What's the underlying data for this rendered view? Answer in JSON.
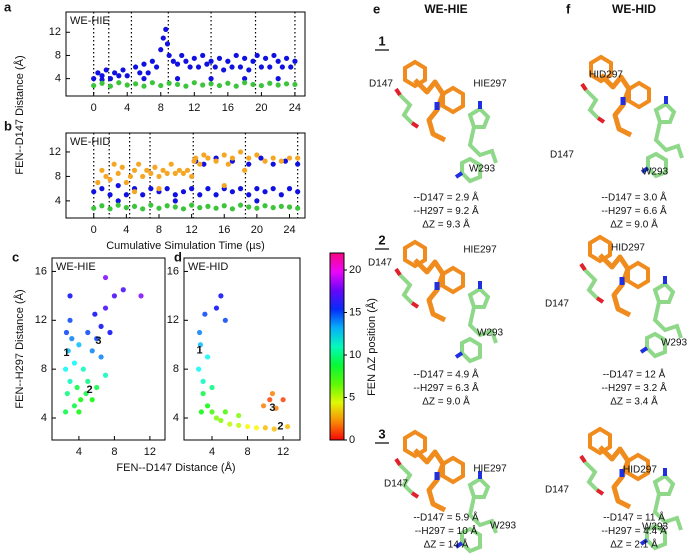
{
  "chart_data": [
    {
      "type": "scatter",
      "panel_label": "a",
      "annotation": "WE-HIE",
      "ylabel": "FEN--D147 Distance (Å)",
      "xlim": [
        -3.3,
        25.2
      ],
      "xticks": [
        0,
        4,
        8,
        12,
        16,
        20,
        24
      ],
      "ylim": [
        1,
        15.5
      ],
      "yticks": [
        4,
        8,
        12
      ],
      "segment_boundaries": [
        0,
        1.8,
        4.5,
        8.9,
        14,
        19.3,
        24
      ],
      "series": [
        {
          "color": "#1010e0",
          "x": [
            0,
            0.5,
            1,
            1.5,
            2,
            2.5,
            3,
            3.5,
            4,
            5,
            5.5,
            6,
            6.5,
            7,
            7.5,
            8,
            8.3,
            8.6,
            8.8,
            9,
            9.5,
            10,
            10.5,
            11,
            11.5,
            12,
            12.5,
            13,
            13.5,
            14,
            14.5,
            15,
            15.5,
            16,
            16.5,
            17,
            17.5,
            18,
            18.5,
            19,
            19.5,
            20,
            20.5,
            21,
            21.5,
            22,
            22.5,
            23,
            23.5,
            24,
            1,
            6,
            10,
            14,
            18,
            22
          ],
          "values": [
            4,
            5,
            4.5,
            5.5,
            4,
            5,
            4.5,
            5.5,
            4.5,
            6,
            5,
            6.5,
            5,
            7,
            6,
            9,
            11,
            12.5,
            10,
            8,
            7,
            6.5,
            8,
            7,
            6,
            7.5,
            6,
            8,
            6.5,
            7,
            6,
            7.5,
            5.5,
            7,
            6,
            8,
            6,
            7.5,
            5.5,
            7,
            8,
            6,
            7.5,
            6,
            8,
            7,
            6,
            7.5,
            6,
            7,
            3.8,
            4,
            4,
            4,
            4,
            4
          ]
        },
        {
          "color": "#3cc43c",
          "x": [
            0,
            1,
            2,
            3,
            4,
            5,
            6,
            7,
            8,
            9,
            10,
            11,
            12,
            13,
            14,
            15,
            16,
            17,
            18,
            19,
            20,
            21,
            22,
            23,
            24
          ],
          "values": [
            2.8,
            3.2,
            2.7,
            3.3,
            2.9,
            3.1,
            2.7,
            3.3,
            2.8,
            3.2,
            3,
            2.7,
            3.3,
            2.9,
            3.1,
            2.8,
            3.2,
            2.7,
            3.3,
            3,
            2.8,
            3.2,
            2.9,
            3.1,
            3
          ]
        }
      ]
    },
    {
      "type": "scatter",
      "panel_label": "b",
      "annotation": "WE-HID",
      "xlabel": "Cumulative Simulation Time (µs)",
      "xlim": [
        -3.4,
        25.9
      ],
      "xticks": [
        0,
        4,
        8,
        12,
        16,
        20,
        24
      ],
      "ylim": [
        1.2,
        15.1
      ],
      "yticks": [
        4,
        8,
        12
      ],
      "segment_boundaries": [
        0,
        1.9,
        4.4,
        6.9,
        12.2,
        18.6,
        25
      ],
      "series": [
        {
          "color": "#1010e0",
          "x": [
            0,
            1,
            2,
            3,
            4,
            5,
            6,
            7,
            8,
            9,
            10,
            11,
            12,
            12.5,
            13,
            14,
            15,
            16,
            17,
            18,
            19,
            20,
            21,
            22,
            23,
            24,
            25,
            13.5,
            15,
            17,
            19,
            20.5,
            22,
            23.5,
            25,
            3,
            10,
            20
          ],
          "values": [
            5.5,
            6,
            5,
            6.5,
            5,
            6,
            5,
            6,
            5.5,
            6,
            5,
            5.5,
            6,
            10.5,
            5,
            6,
            5,
            6,
            5.5,
            6,
            5,
            6,
            5.5,
            6,
            5,
            6,
            5.5,
            10,
            11,
            10.5,
            10,
            11,
            10,
            10.5,
            10,
            4,
            4,
            4
          ]
        },
        {
          "color": "#f5a623",
          "x": [
            0.5,
            1,
            1.5,
            2,
            2.5,
            3,
            3.5,
            4,
            4.5,
            5,
            5.5,
            6,
            6.5,
            7,
            7.5,
            8,
            8.5,
            9,
            9.5,
            10,
            10.5,
            11,
            11.5,
            12,
            12.3,
            12.5,
            13,
            13.5,
            14,
            15,
            16,
            16.5,
            17,
            18,
            18.5,
            19,
            20,
            21,
            22,
            23,
            24,
            25,
            5,
            8,
            16
          ],
          "values": [
            7,
            9,
            8,
            7.5,
            10,
            8.5,
            9.5,
            7,
            8,
            9,
            10,
            8,
            9,
            8.5,
            9.5,
            8,
            9,
            8.5,
            10,
            8.5,
            9,
            8.5,
            9,
            8,
            10.5,
            11,
            10,
            11.5,
            11,
            10.5,
            11.5,
            10,
            11,
            12,
            9,
            11,
            11.5,
            10.5,
            11,
            10.5,
            11,
            11,
            5.5,
            6,
            6.5
          ]
        },
        {
          "color": "#3cc43c",
          "x": [
            0,
            1,
            2,
            3,
            4,
            5,
            6,
            7,
            8,
            9,
            10,
            11,
            12,
            13,
            14,
            15,
            16,
            17,
            18,
            19,
            20,
            21,
            22,
            23,
            24,
            25
          ],
          "values": [
            2.8,
            3.2,
            2.7,
            3.3,
            2.9,
            3.1,
            2.7,
            3.3,
            2.8,
            3.2,
            3,
            2.7,
            3.3,
            2.9,
            3.1,
            2.8,
            3.2,
            2.7,
            3.3,
            3,
            2.8,
            3.2,
            2.9,
            3.1,
            3,
            2.8
          ]
        }
      ]
    },
    {
      "type": "colorscatter",
      "panel_label": "c",
      "annotation": "WE-HIE",
      "ylabel": "FEN--H297 Distance (Å)",
      "xlabel": "FEN--D147 Distance (Å)",
      "xlim": [
        0.97,
        13.7
      ],
      "xticks": [
        4,
        8,
        12
      ],
      "ylim": [
        2.2,
        17.1
      ],
      "yticks": [
        4,
        8,
        12,
        16
      ],
      "x": [
        2.5,
        2.8,
        3,
        3.2,
        2.6,
        3.5,
        3,
        2.7,
        3.8,
        4.2,
        4.8,
        5.5,
        6,
        5,
        4.5,
        5.5,
        6,
        6.5,
        5.8,
        7,
        7.5,
        5,
        6.5,
        8,
        4,
        3.5,
        7,
        4,
        9,
        3,
        11,
        7,
        2.5
      ],
      "values": [
        8,
        9.5,
        7,
        10.5,
        11,
        8.5,
        12,
        6,
        6.5,
        5.5,
        6,
        5.5,
        6.5,
        7,
        8,
        9.5,
        10.5,
        11.5,
        12.5,
        13,
        11,
        11,
        9,
        14,
        4.5,
        5,
        7.5,
        10,
        14.5,
        14,
        14,
        15.5,
        4.5
      ],
      "z": [
        12,
        13,
        11,
        14,
        15,
        12,
        15,
        10,
        9,
        8,
        9,
        8,
        9,
        10,
        11,
        14,
        15,
        16,
        16,
        17,
        16,
        15,
        14,
        17,
        8,
        9,
        11,
        13,
        17,
        16,
        18,
        18,
        9
      ],
      "annotations": [
        {
          "text": "1",
          "x": 2.6,
          "y": 9.3
        },
        {
          "text": "2",
          "x": 5.2,
          "y": 6.3
        },
        {
          "text": "3",
          "x": 6.2,
          "y": 10.3
        }
      ]
    },
    {
      "type": "colorscatter",
      "panel_label": "d",
      "annotation": "WE-HID",
      "xlim": [
        0.85,
        13.9
      ],
      "xticks": [
        4,
        8,
        12
      ],
      "ylim": [
        2.2,
        17.1
      ],
      "yticks": [
        4,
        8,
        12,
        16
      ],
      "x": [
        2.5,
        2.7,
        3,
        2.6,
        3.2,
        3,
        3.5,
        4,
        4.5,
        5,
        6,
        7,
        8,
        9,
        10,
        11,
        5.5,
        7,
        9.8,
        10.5,
        11.2,
        12,
        10.8,
        4.5,
        5,
        5.5,
        3.5,
        2.8,
        4,
        12.5
      ],
      "values": [
        8,
        10,
        7,
        11,
        12.5,
        6,
        5,
        4.5,
        4,
        3.8,
        3.5,
        3.4,
        3.3,
        3.2,
        3.2,
        3.1,
        4.5,
        4.2,
        5,
        5.5,
        4.8,
        5.5,
        6,
        13,
        14,
        12,
        9,
        4.5,
        6.5,
        3.3
      ],
      "z": [
        12,
        13,
        11,
        14,
        15,
        9,
        8,
        7,
        6,
        6,
        5,
        5,
        4,
        4,
        3,
        3,
        7,
        6,
        2,
        1,
        2,
        1,
        2,
        16,
        16,
        15,
        12,
        8,
        10,
        3
      ],
      "annotations": [
        {
          "text": "1",
          "x": 2.6,
          "y": 9.5
        },
        {
          "text": "3",
          "x": 10.8,
          "y": 4.8
        },
        {
          "text": "2",
          "x": 11.7,
          "y": 3.3
        }
      ],
      "colorbar": {
        "label": "FEN ΔZ position (Å)",
        "lim": [
          0,
          22
        ],
        "ticks": [
          0,
          5,
          10,
          15,
          20
        ]
      }
    }
  ],
  "structures": {
    "columns": [
      {
        "label": "e",
        "title": "WE-HIE"
      },
      {
        "label": "f",
        "title": "WE-HID"
      }
    ],
    "rows": [
      {
        "number": "1",
        "cells": [
          {
            "residues": [
              "D147",
              "HIE297",
              "W293"
            ],
            "lines": [
              "--D147 = 2.9 Å",
              "--H297 = 9.2 Å",
              "ΔZ = 9.3 Å"
            ]
          },
          {
            "residues": [
              "HID297",
              "D147",
              "W293"
            ],
            "lines": [
              "--D147 = 3.0 Å",
              "--H297 = 6.6 Å",
              "ΔZ = 9.0 Å"
            ]
          }
        ]
      },
      {
        "number": "2",
        "cells": [
          {
            "residues": [
              "D147",
              "HIE297",
              "W293"
            ],
            "lines": [
              "--D147 = 4.9 Å",
              "--H297 = 6.3 Å",
              "ΔZ = 9.0 Å"
            ]
          },
          {
            "residues": [
              "HID297",
              "D147",
              "W293"
            ],
            "lines": [
              "--D147 = 12 Å",
              "--H297 = 3.2 Å",
              "ΔZ = 3.4 Å"
            ]
          }
        ]
      },
      {
        "number": "3",
        "cells": [
          {
            "residues": [
              "D147",
              "HIE297",
              "W293"
            ],
            "lines": [
              "--D147 = 5.9 Å",
              "--H297 = 10 Å",
              "ΔZ = 14 Å"
            ]
          },
          {
            "residues": [
              "HID297",
              "D147",
              "W293"
            ],
            "lines": [
              "--D147 = 11 Å",
              "--H297 = 4.4 Å",
              "ΔZ = 2.1 Å"
            ]
          }
        ]
      }
    ]
  }
}
